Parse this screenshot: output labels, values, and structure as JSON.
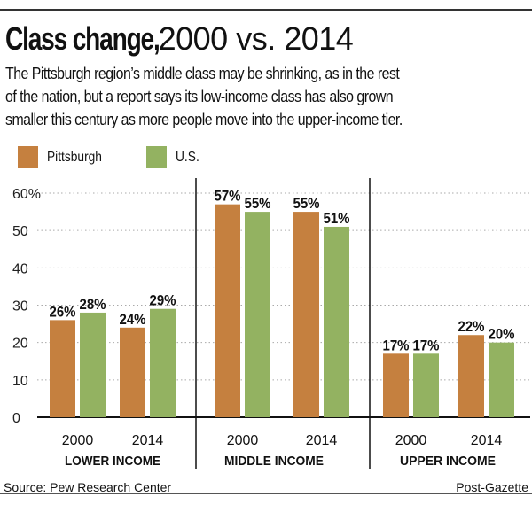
{
  "header": {
    "title_bold": "Class change,",
    "title_rest": "2000 vs. 2014",
    "subtitle_lines": [
      "The Pittsburgh region’s middle class may be shrinking, as in the rest",
      "of the nation, but a report says its low-income class has also grown",
      "smaller this century as more people move into the upper-income tier."
    ]
  },
  "colors": {
    "pittsburgh": "#c5803f",
    "us": "#93b261"
  },
  "footer": {
    "source": "Source: Pew Research Center",
    "credit": "Post-Gazette"
  },
  "chart_data": {
    "type": "bar",
    "title": "Class change, 2000 vs. 2014",
    "xlabel": "",
    "ylabel": "",
    "ylim": [
      0,
      60
    ],
    "yticks": [
      0,
      10,
      20,
      30,
      40,
      50,
      60
    ],
    "ytick_labels": [
      "0",
      "10",
      "20",
      "30",
      "40",
      "50",
      "60%"
    ],
    "grid": true,
    "legend": {
      "placement": "top-left",
      "entries": [
        "Pittsburgh",
        "U.S."
      ]
    },
    "groups": [
      {
        "name": "LOWER INCOME",
        "categories": [
          "2000",
          "2014"
        ]
      },
      {
        "name": "MIDDLE INCOME",
        "categories": [
          "2000",
          "2014"
        ]
      },
      {
        "name": "UPPER INCOME",
        "categories": [
          "2000",
          "2014"
        ]
      }
    ],
    "categories": [
      "Lower 2000",
      "Lower 2014",
      "Middle 2000",
      "Middle 2014",
      "Upper 2000",
      "Upper 2014"
    ],
    "series": [
      {
        "name": "Pittsburgh",
        "values": [
          26,
          24,
          57,
          55,
          17,
          22
        ],
        "labels": [
          "26%",
          "24%",
          "57%",
          "55%",
          "17%",
          "22%"
        ]
      },
      {
        "name": "U.S.",
        "values": [
          28,
          29,
          55,
          51,
          17,
          20
        ],
        "labels": [
          "28%",
          "29%",
          "55%",
          "51%",
          "17%",
          "20%"
        ]
      }
    ]
  }
}
